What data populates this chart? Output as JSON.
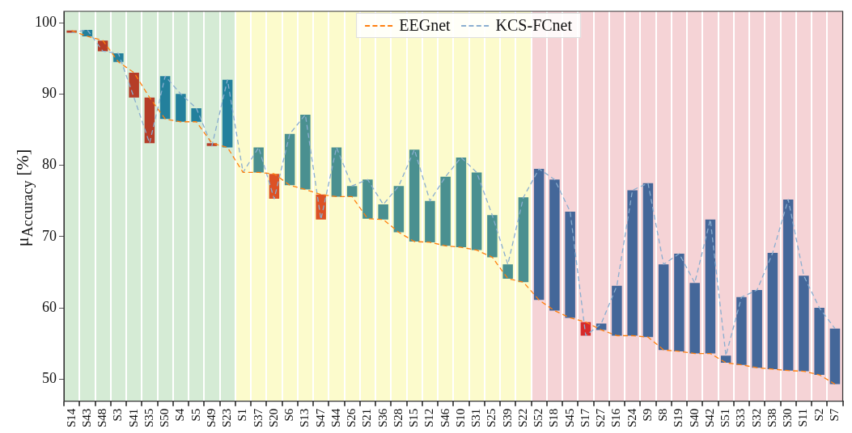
{
  "chart_data": {
    "type": "bar",
    "ylabel": "μ$_{Accuracy}$ [%]",
    "categories": [
      "S14",
      "S43",
      "S48",
      "S3",
      "S41",
      "S35",
      "S50",
      "S4",
      "S5",
      "S49",
      "S23",
      "S1",
      "S37",
      "S20",
      "S6",
      "S13",
      "S47",
      "S44",
      "S26",
      "S21",
      "S36",
      "S28",
      "S15",
      "S12",
      "S46",
      "S10",
      "S31",
      "S25",
      "S39",
      "S22",
      "S52",
      "S18",
      "S45",
      "S17",
      "S27",
      "S16",
      "S24",
      "S9",
      "S8",
      "S19",
      "S40",
      "S42",
      "S51",
      "S33",
      "S32",
      "S38",
      "S30",
      "S11",
      "S2",
      "S7"
    ],
    "base": [
      98.9,
      98.1,
      97.5,
      94.5,
      93.0,
      89.5,
      86.5,
      86.1,
      86.1,
      83.1,
      82.5,
      null,
      79.0,
      78.8,
      77.2,
      76.6,
      75.9,
      75.6,
      75.6,
      72.5,
      72.4,
      70.6,
      69.3,
      69.2,
      68.7,
      68.5,
      68.1,
      67.1,
      64.1,
      63.6,
      61.1,
      59.6,
      58.6,
      58.0,
      56.9,
      56.1,
      56.1,
      55.9,
      54.1,
      53.9,
      53.6,
      53.6,
      52.3,
      52.0,
      51.6,
      51.4,
      51.2,
      51.1,
      50.6,
      49.3
    ],
    "values": [
      -0.3,
      0.9,
      -1.5,
      1.2,
      -3.5,
      -6.4,
      6.0,
      3.9,
      1.9,
      -0.4,
      9.5,
      null,
      3.5,
      -3.5,
      7.2,
      10.5,
      -3.5,
      6.9,
      1.5,
      5.5,
      2.1,
      6.5,
      12.9,
      5.8,
      9.7,
      12.6,
      10.9,
      5.9,
      2.0,
      11.9,
      18.4,
      18.4,
      14.9,
      -1.9,
      0.9,
      7.0,
      20.4,
      21.6,
      12.0,
      13.7,
      9.9,
      18.8,
      1.0,
      9.5,
      10.9,
      16.3,
      24.0,
      13.4,
      9.4,
      7.8
    ],
    "colors": [
      "#b53d28",
      "#23809c",
      "#b53d28",
      "#23809c",
      "#b53d28",
      "#b53d28",
      "#23809c",
      "#23809c",
      "#23809c",
      "#b53d28",
      "#23809c",
      "#4a9090",
      "#4a9090",
      "#dc5125",
      "#4a9090",
      "#4a9090",
      "#dc5125",
      "#4a9090",
      "#4a9090",
      "#4a9090",
      "#4a9090",
      "#4a9090",
      "#4a9090",
      "#4a9090",
      "#4a9090",
      "#4a9090",
      "#4a9090",
      "#4a9090",
      "#4a9090",
      "#4a9090",
      "#446799",
      "#446799",
      "#446799",
      "#d62a2a",
      "#446799",
      "#446799",
      "#446799",
      "#446799",
      "#446799",
      "#446799",
      "#446799",
      "#446799",
      "#446799",
      "#446799",
      "#446799",
      "#446799",
      "#446799",
      "#446799",
      "#446799",
      "#446799"
    ],
    "series": [
      {
        "type": "line",
        "name": "EEGnet",
        "color": "#ff7f0e",
        "line_style": "dashed",
        "values": [
          98.9,
          98.1,
          97.5,
          94.5,
          93.0,
          89.5,
          86.5,
          86.1,
          86.1,
          83.1,
          82.5,
          79.0,
          79.0,
          78.8,
          77.2,
          76.6,
          75.9,
          75.6,
          75.6,
          72.5,
          72.4,
          70.6,
          69.3,
          69.2,
          68.7,
          68.5,
          68.1,
          67.1,
          64.1,
          63.6,
          61.1,
          59.6,
          58.6,
          58.0,
          56.9,
          56.1,
          56.1,
          55.9,
          54.1,
          53.9,
          53.6,
          53.6,
          52.3,
          52.0,
          51.6,
          51.4,
          51.2,
          51.1,
          50.6,
          49.3
        ]
      },
      {
        "type": "line",
        "name": "KCS-FCnet",
        "color": "#8aaed0",
        "line_style": "dashed",
        "values": [
          98.6,
          99.0,
          96.0,
          95.7,
          89.5,
          83.1,
          92.5,
          90.0,
          88.0,
          82.7,
          92.0,
          79.0,
          82.5,
          75.3,
          84.4,
          87.1,
          72.4,
          82.5,
          77.1,
          78.0,
          74.5,
          77.1,
          82.2,
          75.0,
          78.4,
          81.1,
          79.0,
          73.0,
          66.1,
          75.5,
          79.5,
          78.0,
          73.5,
          56.1,
          57.8,
          63.1,
          76.5,
          77.5,
          66.1,
          67.6,
          63.5,
          72.4,
          53.3,
          61.5,
          62.5,
          67.7,
          75.2,
          64.5,
          60.0,
          57.1
        ]
      }
    ],
    "bands": [
      {
        "axis": "x",
        "from": "S14",
        "to": "S23",
        "color": "#d5ebd5"
      },
      {
        "axis": "x",
        "from": "S1",
        "to": "S22",
        "color": "#fcfbcc"
      },
      {
        "axis": "x",
        "from": "S52",
        "to": "S7",
        "color": "#f5d3d6"
      }
    ],
    "ylim": [
      46.9,
      101.6
    ],
    "yticks": [
      50,
      60,
      70,
      80,
      90,
      100
    ],
    "grid": "x",
    "legend": "top",
    "marker": "none"
  }
}
